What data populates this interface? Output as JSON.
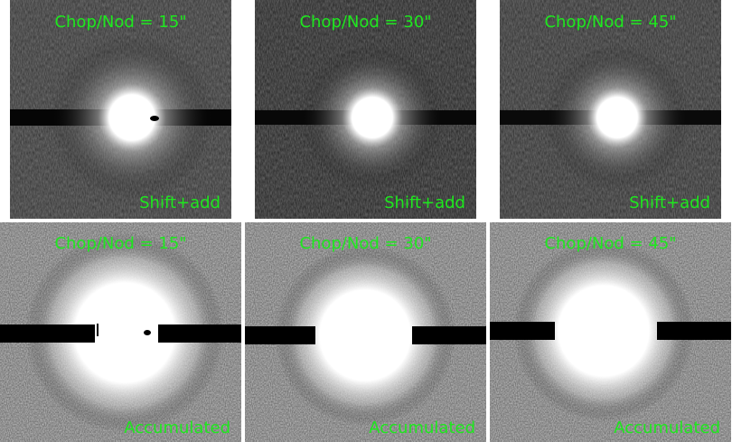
{
  "panels": [
    {
      "title": "Chop/Nod = 15\"",
      "mode": "Shift+add"
    },
    {
      "title": "Chop/Nod = 30\"",
      "mode": "Shift+add"
    },
    {
      "title": "Chop/Nod = 45\"",
      "mode": "Shift+add"
    },
    {
      "title": "Chop/Nod = 15\"",
      "mode": "Accumulated"
    },
    {
      "title": "Chop/Nod = 30\"",
      "mode": "Accumulated"
    },
    {
      "title": "Chop/Nod = 45\"",
      "mode": "Accumulated"
    }
  ],
  "colors": {
    "label": "#1ee81e"
  }
}
